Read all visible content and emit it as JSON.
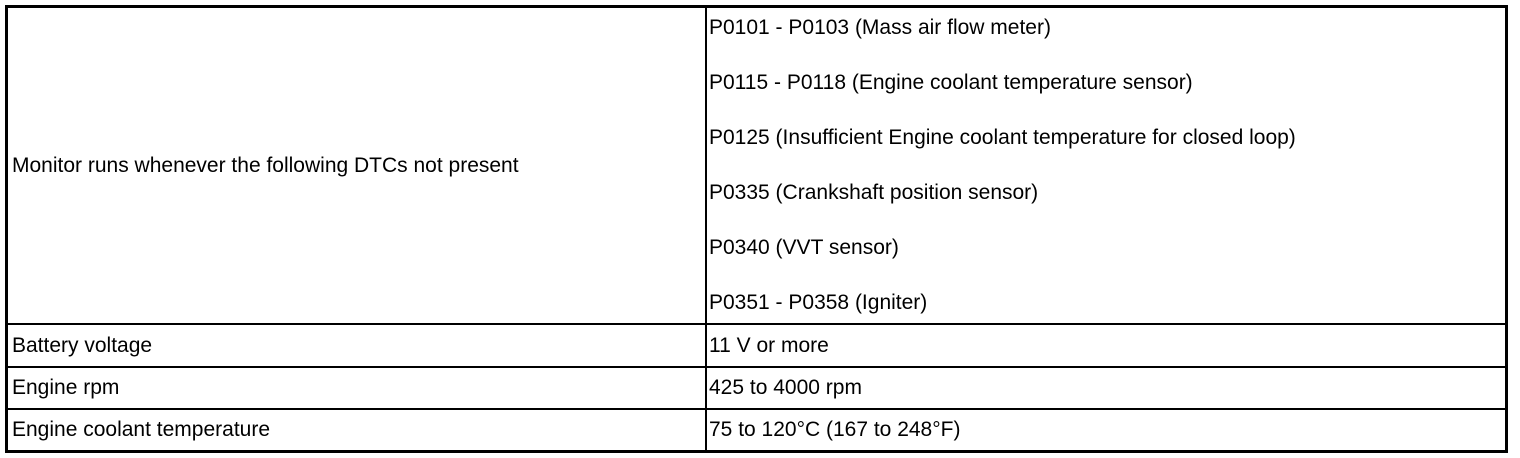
{
  "table": {
    "rows": [
      {
        "condition": "Monitor runs whenever the following DTCs not present",
        "values": [
          "P0101 - P0103 (Mass air flow meter)",
          "P0115 - P0118 (Engine coolant temperature sensor)",
          "P0125 (Insufficient Engine coolant temperature for closed loop)",
          "P0335 (Crankshaft position sensor)",
          "P0340 (VVT sensor)",
          "P0351 - P0358 (Igniter)"
        ]
      },
      {
        "condition": "Battery voltage",
        "values": [
          "11 V or more"
        ]
      },
      {
        "condition": "Engine rpm",
        "values": [
          "425 to 4000 rpm"
        ]
      },
      {
        "condition": "Engine coolant temperature",
        "values": [
          "75 to 120°C (167 to 248°F)"
        ]
      }
    ]
  }
}
